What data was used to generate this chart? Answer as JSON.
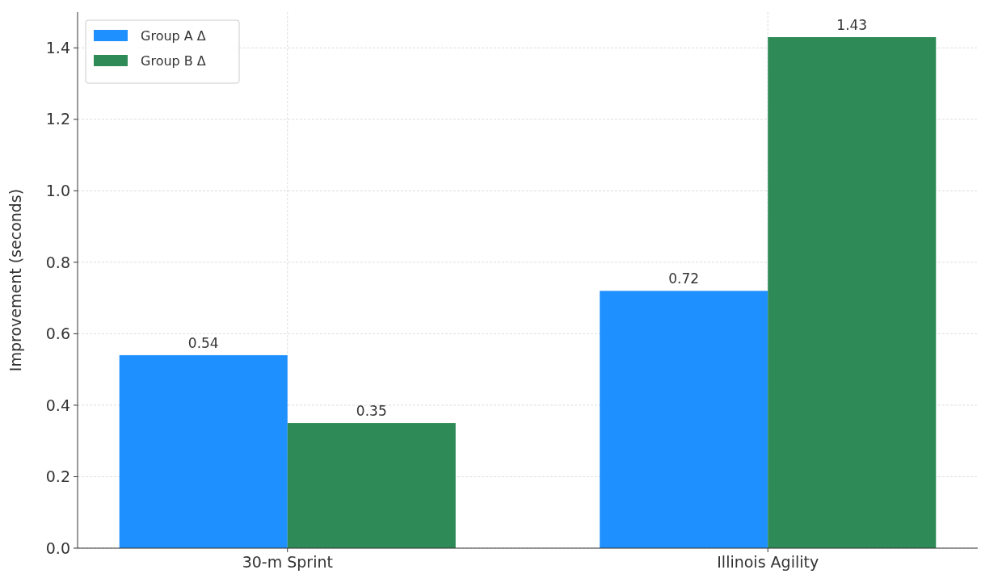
{
  "chart_data": {
    "type": "bar",
    "ylabel": "Improvement (seconds)",
    "categories": [
      "30-m Sprint",
      "Illinois Agility"
    ],
    "series": [
      {
        "name": "Group A Δ",
        "color": "#1e90ff",
        "values": [
          0.54,
          0.72
        ]
      },
      {
        "name": "Group B Δ",
        "color": "#2e8b57",
        "values": [
          0.35,
          1.43
        ]
      }
    ],
    "ylim": [
      0,
      1.5
    ],
    "yticks": [
      {
        "value": 0,
        "label": "0.0"
      },
      0.2,
      0.4,
      0.6,
      0.8,
      {
        "value": 1,
        "label": "1.0"
      },
      1.2,
      1.4
    ],
    "grid": true,
    "legend": "top left",
    "data_labels": true
  }
}
